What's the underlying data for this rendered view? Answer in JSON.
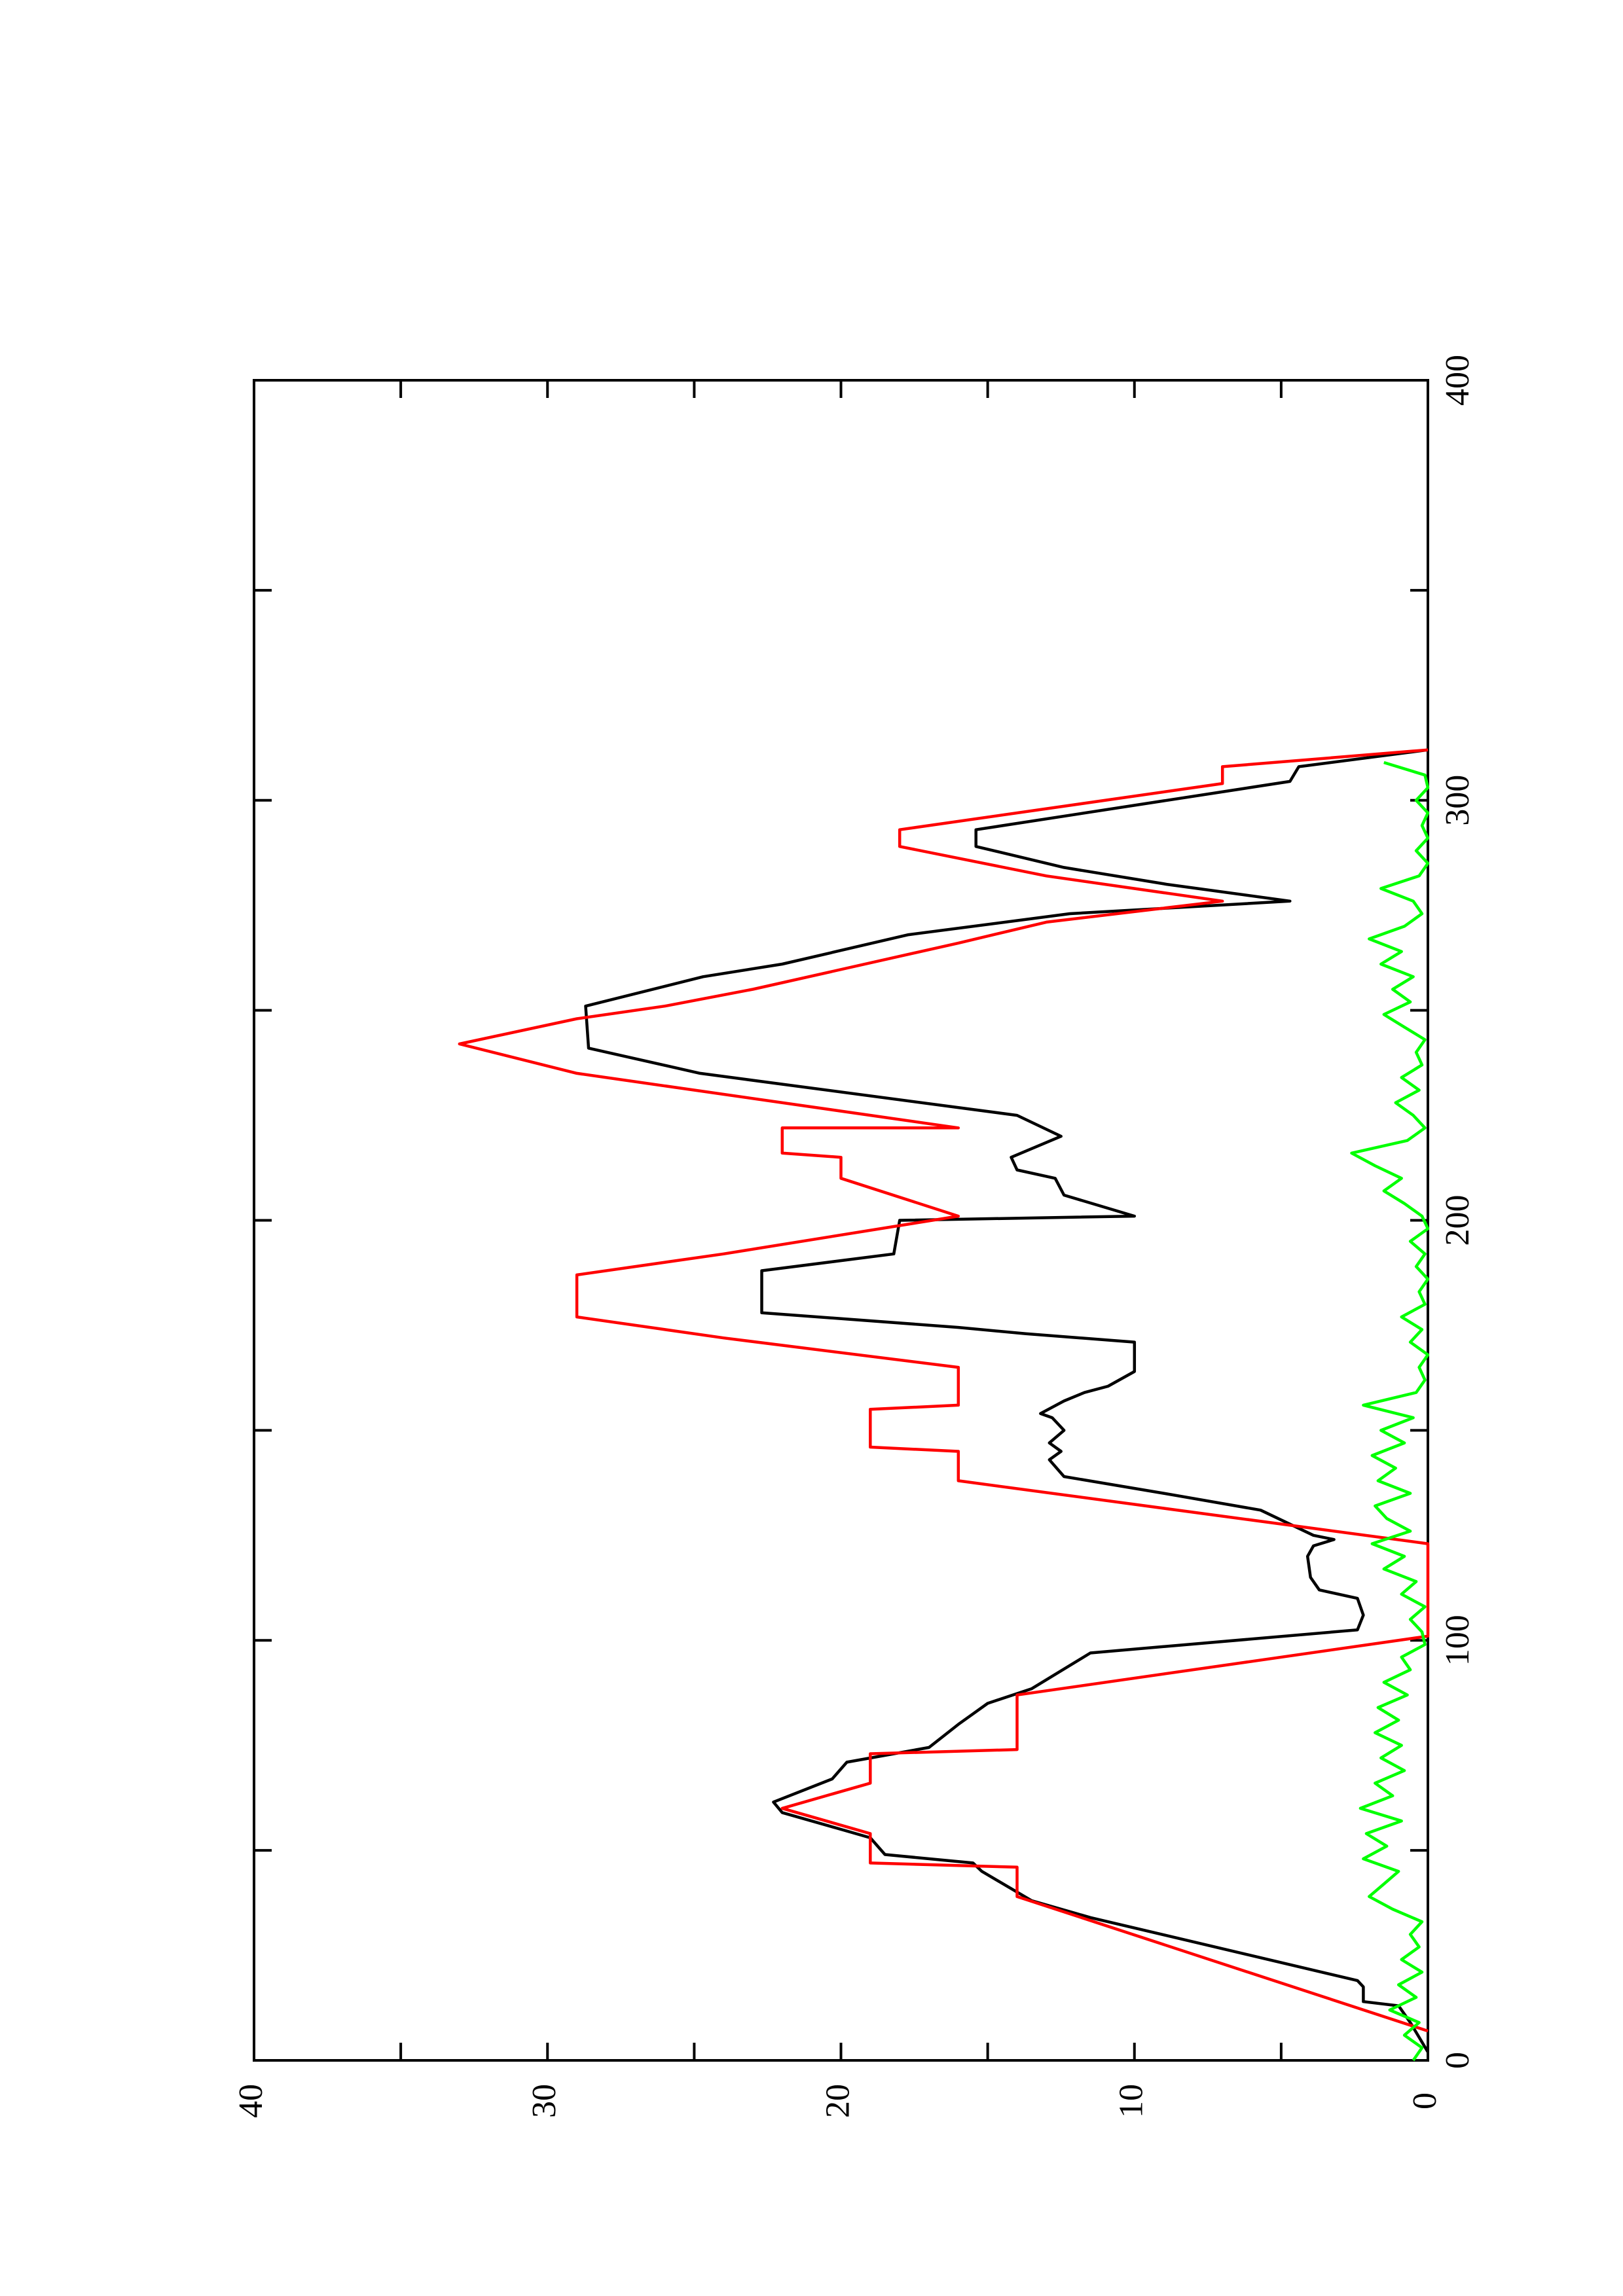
{
  "chart_data": {
    "type": "line",
    "xlim": [
      0,
      400
    ],
    "xticks": [
      0,
      100,
      200,
      300,
      400
    ],
    "xminor_ticks": [
      50,
      150,
      250,
      350
    ],
    "ylim": [
      0,
      40
    ],
    "yticks": [
      0,
      10,
      20,
      30,
      40
    ],
    "yminor_ticks": [
      5,
      15,
      25,
      35
    ],
    "orientation": "rotated-90",
    "series": [
      {
        "color": "#000000",
        "x": [
          2,
          9,
          13,
          14,
          17.5,
          19,
          34,
          38,
          45,
          47,
          49,
          53,
          55,
          59,
          61.5,
          67,
          71,
          74.5,
          80,
          82.5,
          85,
          88.5,
          97,
          102.5,
          106,
          110,
          112,
          115,
          120,
          122.5,
          124,
          125,
          131,
          135,
          139,
          143,
          145,
          147,
          150,
          153,
          154,
          157,
          159,
          160.5,
          164,
          171,
          173,
          174.5,
          178,
          188,
          192,
          200,
          201,
          206,
          210,
          212,
          215,
          220,
          225,
          235,
          241,
          251,
          258,
          261,
          268,
          273,
          276,
          280,
          284,
          289,
          293,
          304.5,
          308,
          312
        ],
        "values": [
          0,
          0.6,
          1,
          2.2,
          2.2,
          2.4,
          11.5,
          13.5,
          15.2,
          15.5,
          18.5,
          19,
          20,
          22,
          22.3,
          20.3,
          19.8,
          17,
          16,
          15.5,
          15,
          13.5,
          11.5,
          2.4,
          2.2,
          2.4,
          3.7,
          4,
          4.1,
          3.9,
          3.2,
          3.9,
          5.7,
          9,
          12.4,
          12.9,
          12.5,
          12.9,
          12.4,
          12.8,
          13.2,
          12.4,
          11.7,
          10.9,
          10,
          10,
          13.7,
          16,
          22.7,
          22.7,
          18.2,
          18,
          10,
          12.4,
          12.7,
          14,
          14.2,
          12.5,
          14,
          24.8,
          28.6,
          28.7,
          24.7,
          22,
          17.7,
          12.2,
          4.7,
          8.9,
          12.4,
          15.4,
          15.4,
          4.7,
          4.4,
          0
        ]
      },
      {
        "color": "#ff0000",
        "x": [
          7,
          39,
          46,
          47,
          54,
          60,
          66,
          73,
          74,
          87,
          101,
          123,
          138,
          145,
          146,
          155,
          156,
          165,
          172,
          177,
          187,
          192,
          201,
          210,
          215,
          216,
          222,
          222,
          235,
          242,
          248,
          251,
          255,
          266,
          271,
          276,
          282,
          289,
          293,
          304,
          308,
          312
        ],
        "values": [
          0,
          14,
          14,
          19,
          19,
          22,
          19,
          19,
          14,
          14,
          0,
          0,
          16,
          16,
          19,
          19,
          16,
          16,
          24,
          29,
          29,
          24,
          16,
          20,
          20,
          22,
          22,
          16,
          29,
          33,
          29,
          26,
          23,
          16,
          13,
          7,
          13,
          18,
          18,
          7,
          7,
          0
        ]
      },
      {
        "color": "#00ff00",
        "x": [
          0,
          3,
          6,
          9,
          12,
          15,
          18,
          21,
          24,
          27,
          30,
          33,
          36,
          39,
          42,
          45,
          48,
          51,
          54,
          57,
          60,
          63,
          66,
          69,
          72,
          75,
          78,
          81,
          84,
          87,
          90,
          93,
          96,
          99,
          102,
          105,
          108,
          111,
          114,
          117,
          120,
          123,
          126,
          129,
          132,
          135,
          138,
          141,
          144,
          147,
          150,
          153,
          156,
          159,
          162,
          165,
          168,
          171,
          174,
          177,
          180,
          183,
          186,
          189,
          192,
          195,
          198,
          201,
          204,
          207,
          210,
          213,
          216,
          219,
          222,
          225,
          228,
          231,
          234,
          237,
          240,
          243,
          246,
          249,
          252,
          255,
          258,
          261,
          264,
          267,
          270,
          273,
          276,
          279,
          282,
          285,
          288,
          291,
          294,
          297,
          300,
          303,
          306,
          309
        ],
        "values": [
          0.5,
          0.2,
          0.8,
          0.3,
          1.3,
          0.4,
          1.0,
          0.2,
          0.9,
          0.3,
          0.6,
          0.2,
          1.2,
          2.0,
          1.5,
          1.0,
          2.2,
          1.4,
          2.1,
          0.9,
          2.3,
          1.2,
          1.8,
          0.8,
          1.6,
          0.9,
          1.8,
          1.0,
          1.7,
          0.7,
          1.5,
          0.6,
          0.9,
          0.1,
          0.2,
          0.6,
          0.1,
          0.9,
          0.4,
          1.5,
          0.8,
          1.9,
          0.6,
          1.4,
          1.8,
          0.6,
          1.7,
          1.1,
          1.9,
          0.8,
          1.6,
          0.5,
          2.2,
          0.4,
          0.1,
          0.3,
          0,
          0.6,
          0.2,
          0.9,
          0.1,
          0.3,
          0,
          0.4,
          0.1,
          0.6,
          0,
          0.2,
          0.8,
          1.5,
          0.9,
          1.8,
          2.6,
          0.7,
          0.1,
          0.5,
          1.1,
          0.3,
          0.9,
          0.2,
          0.4,
          0.1,
          0.8,
          1.5,
          0.6,
          1.2,
          0.5,
          1.6,
          0.9,
          2.0,
          0.8,
          0.2,
          0.5,
          1.6,
          0.3,
          0,
          0.4,
          0,
          0.2,
          0,
          0.4,
          0,
          0.1,
          1.5
        ]
      }
    ]
  }
}
